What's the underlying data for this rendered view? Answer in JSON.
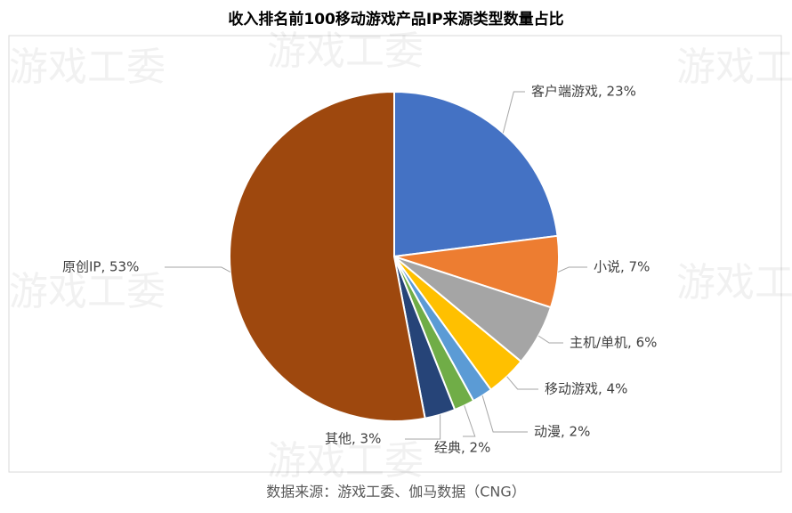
{
  "chart_data": {
    "type": "pie",
    "title": "收入排名前100移动游戏产品IP来源类型数量占比",
    "categories": [
      "客户端游戏",
      "小说",
      "主机/单机",
      "移动游戏",
      "动漫",
      "经典",
      "其他",
      "原创IP"
    ],
    "values": [
      23,
      7,
      6,
      4,
      2,
      2,
      3,
      53
    ],
    "value_labels": [
      "客户端游戏, 23%",
      "小说, 7%",
      "主机/单机, 6%",
      "移动游戏, 4%",
      "动漫, 2%",
      "经典, 2%",
      "其他, 3%",
      "原创IP, 53%"
    ],
    "colors": [
      "#4472c4",
      "#ed7d31",
      "#a5a5a5",
      "#ffc000",
      "#5b9bd5",
      "#70ad47",
      "#264478",
      "#9e480e"
    ],
    "watermark": "游戏工委"
  },
  "source": "数据来源：游戏工委、伽马数据（CNG）"
}
